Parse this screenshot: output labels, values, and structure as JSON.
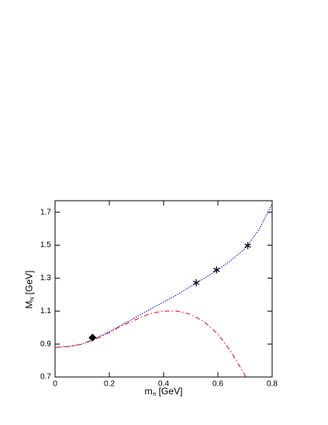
{
  "chart_data": {
    "type": "line",
    "x_label": {
      "main": "m",
      "sub": "π",
      "unit": "[GeV]"
    },
    "y_label": {
      "main": "M",
      "sub": "N",
      "unit": "[GeV]"
    },
    "xlim": [
      0,
      0.8
    ],
    "ylim": [
      0.7,
      1.77
    ],
    "xticks": [
      0,
      0.2,
      0.4,
      0.6,
      0.8
    ],
    "yticks": [
      0.7,
      0.9,
      1.1,
      1.3,
      1.5,
      1.7
    ],
    "series": [
      {
        "color": "#0000ff",
        "style": "dotted",
        "marker": "none",
        "x": [
          0,
          0.05,
          0.1,
          0.15,
          0.2,
          0.25,
          0.3,
          0.35,
          0.4,
          0.45,
          0.5,
          0.55,
          0.6,
          0.65,
          0.7,
          0.75,
          0.8
        ],
        "values": [
          0.88,
          0.885,
          0.9,
          0.935,
          0.975,
          1.02,
          1.065,
          1.11,
          1.155,
          1.2,
          1.25,
          1.3,
          1.35,
          1.41,
          1.48,
          1.59,
          1.75
        ]
      },
      {
        "color": "#ff0000",
        "style": "dashdot",
        "marker": "none",
        "x": [
          0,
          0.05,
          0.1,
          0.15,
          0.2,
          0.25,
          0.3,
          0.35,
          0.4,
          0.45,
          0.5,
          0.55,
          0.6,
          0.65,
          0.7,
          0.705
        ],
        "values": [
          0.88,
          0.885,
          0.9,
          0.93,
          0.97,
          1.015,
          1.05,
          1.085,
          1.1,
          1.1,
          1.08,
          1.035,
          0.96,
          0.85,
          0.71,
          0.69
        ]
      },
      {
        "color": "#000000",
        "style": "none",
        "marker": "diamond",
        "x": [
          0.138
        ],
        "values": [
          0.939
        ]
      },
      {
        "color": "#000000",
        "style": "none",
        "marker": "star",
        "x": [
          0.52,
          0.595,
          0.71
        ],
        "values": [
          1.272,
          1.35,
          1.497
        ]
      }
    ]
  }
}
